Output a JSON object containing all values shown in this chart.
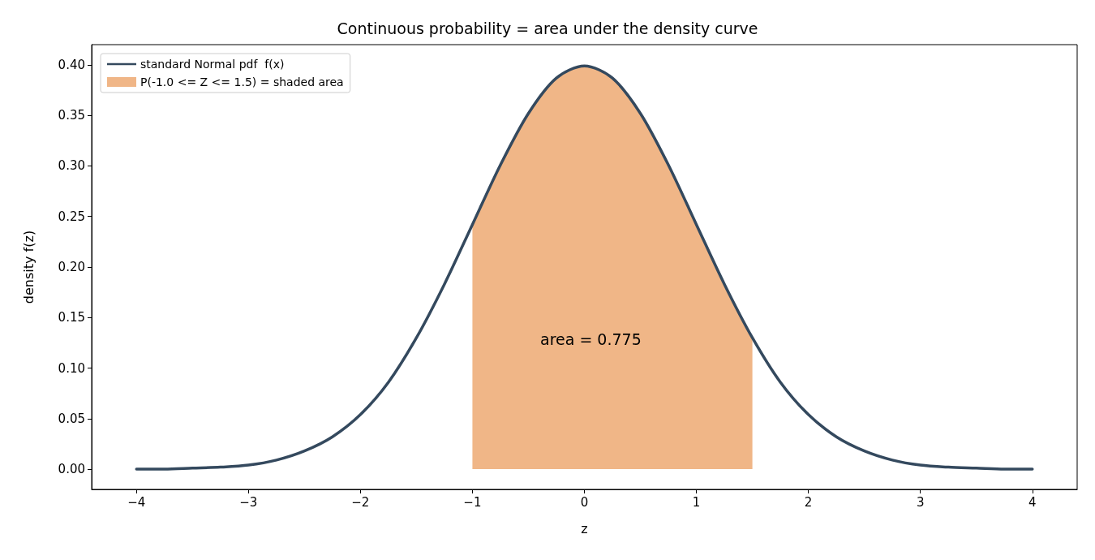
{
  "chart_data": {
    "type": "line",
    "title": "Continuous probability = area under the density curve",
    "xlabel": "z",
    "ylabel": "density f(z)",
    "series": [
      {
        "name": "standard Normal pdf  f(x)",
        "color": "#34495e",
        "x": [
          -4,
          -3.75,
          -3.5,
          -3.25,
          -3,
          -2.75,
          -2.5,
          -2.25,
          -2,
          -1.75,
          -1.5,
          -1.25,
          -1,
          -0.75,
          -0.5,
          -0.25,
          0,
          0.25,
          0.5,
          0.75,
          1,
          1.25,
          1.5,
          1.75,
          2,
          2.25,
          2.5,
          2.75,
          3,
          3.25,
          3.5,
          3.75,
          4
        ],
        "values": [
          0.0,
          0.0,
          0.001,
          0.002,
          0.004,
          0.009,
          0.018,
          0.032,
          0.054,
          0.086,
          0.13,
          0.183,
          0.242,
          0.301,
          0.352,
          0.387,
          0.399,
          0.387,
          0.352,
          0.301,
          0.242,
          0.183,
          0.13,
          0.086,
          0.054,
          0.032,
          0.018,
          0.009,
          0.004,
          0.002,
          0.001,
          0.0,
          0.0
        ]
      },
      {
        "name": "P(-1.0 <= Z <= 1.5) = shaded area",
        "type": "area",
        "color": "#f0b687",
        "x": [
          -1,
          -0.75,
          -0.5,
          -0.25,
          0,
          0.25,
          0.5,
          0.75,
          1,
          1.25,
          1.5
        ],
        "values": [
          0.242,
          0.301,
          0.352,
          0.387,
          0.399,
          0.387,
          0.352,
          0.301,
          0.242,
          0.183,
          0.13
        ]
      }
    ],
    "annotations": [
      "area = 0.775"
    ],
    "xlim": [
      -4.4,
      4.4
    ],
    "xticks": [
      {
        "value": -4,
        "label": "−4"
      },
      {
        "value": -3,
        "label": "−3"
      },
      {
        "value": -2,
        "label": "−2"
      },
      {
        "value": -1,
        "label": "−1"
      },
      0,
      1,
      2,
      3,
      4
    ],
    "ylim": [
      -0.02,
      0.42
    ],
    "yticks": [
      {
        "value": 0,
        "label": "0.00"
      },
      {
        "value": 0.05,
        "label": "0.05"
      },
      {
        "value": 0.1,
        "label": "0.10"
      },
      {
        "value": 0.15,
        "label": "0.15"
      },
      {
        "value": 0.2,
        "label": "0.20"
      },
      {
        "value": 0.25,
        "label": "0.25"
      },
      {
        "value": 0.3,
        "label": "0.30"
      },
      {
        "value": 0.35,
        "label": "0.35"
      },
      {
        "value": 0.4,
        "label": "0.40"
      }
    ],
    "legend": "top left",
    "marker": "none",
    "line_style": "solid"
  }
}
